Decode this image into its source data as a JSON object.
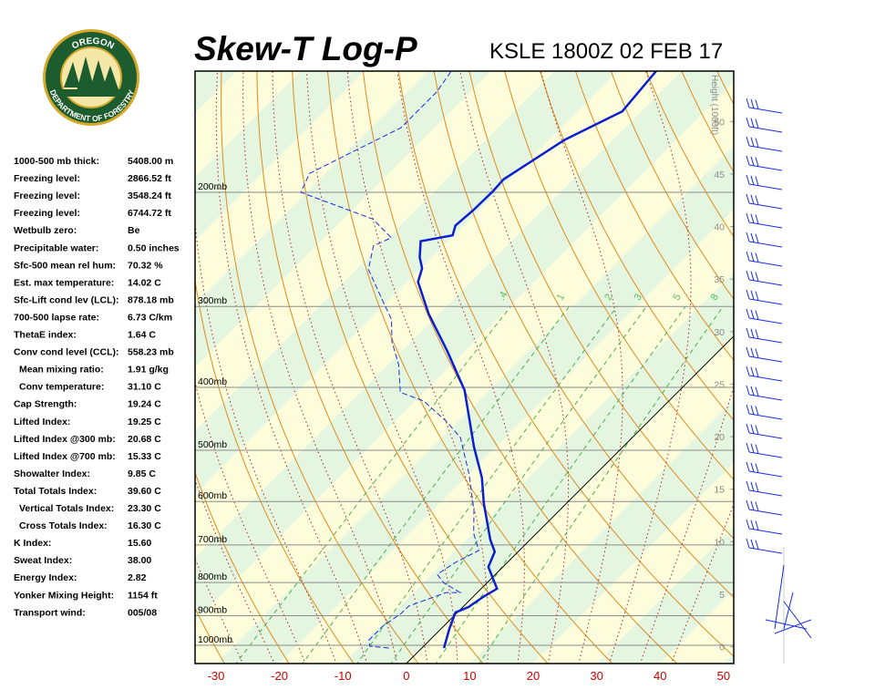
{
  "header": {
    "title": "Skew-T Log-P",
    "station": "KSLE 1800Z 02 FEB 17"
  },
  "logo": {
    "top": "OREGON",
    "bottom": "DEPARTMENT OF FORESTRY"
  },
  "indices": {
    "rows": [
      [
        "1000-500 mb thick:",
        "5408.00 m"
      ],
      [
        "Freezing level:",
        "2866.52 ft"
      ],
      [
        "Freezing level:",
        "3548.24 ft"
      ],
      [
        "Freezing level:",
        "6744.72 ft"
      ],
      [
        "Wetbulb zero:",
        "Be"
      ],
      [
        "Precipitable water:",
        "0.50 inches"
      ],
      [
        "Sfc-500 mean rel hum:",
        "70.32 %"
      ],
      [
        "Est. max temperature:",
        "14.02 C"
      ],
      [
        "Sfc-Lift cond lev (LCL):",
        "878.18 mb"
      ],
      [
        "700-500 lapse rate:",
        "6.73 C/km"
      ],
      [
        "ThetaE index:",
        "1.64 C"
      ],
      [
        "Conv cond level (CCL):",
        "558.23 mb"
      ],
      [
        "Mean mixing ratio:",
        "1.91 g/kg"
      ],
      [
        "Conv temperature:",
        "31.10 C"
      ],
      [
        "Cap Strength:",
        "19.24 C"
      ],
      [
        "Lifted Index:",
        "19.25 C"
      ],
      [
        "Lifted Index @300 mb:",
        "20.68 C"
      ],
      [
        "Lifted Index @700 mb:",
        "15.33 C"
      ],
      [
        "Showalter Index:",
        "9.85 C"
      ],
      [
        "Total Totals Index:",
        "39.60 C"
      ],
      [
        "Vertical Totals Index:",
        "23.30 C"
      ],
      [
        "Cross Totals Index:",
        "16.30 C"
      ],
      [
        "K Index:",
        "15.60"
      ],
      [
        "Sweat Index:",
        "38.00"
      ],
      [
        "Energy Index:",
        "2.82"
      ],
      [
        "Yonker Mixing Height:",
        "1154 ft"
      ],
      [
        "Transport wind:",
        "005/08"
      ]
    ]
  },
  "chart_data": {
    "type": "skewt",
    "xlim": [
      -33.3,
      51.6
    ],
    "xticks": [
      -30,
      -20,
      -10,
      0,
      10,
      20,
      30,
      40,
      50
    ],
    "ylim": [
      1067,
      130
    ],
    "log_y": true,
    "yticks": [
      {
        "value": 200,
        "label": "200mb"
      },
      {
        "value": 300,
        "label": "300mb"
      },
      {
        "value": 400,
        "label": "400mb"
      },
      {
        "value": 500,
        "label": "500mb"
      },
      {
        "value": 600,
        "label": "600mb"
      },
      {
        "value": 700,
        "label": "700mb"
      },
      {
        "value": 800,
        "label": "800mb"
      },
      {
        "value": 900,
        "label": "900mb"
      },
      {
        "value": 1000,
        "label": "1000mb"
      }
    ],
    "y2label": "Height (1000ft)",
    "y2lim": [
      -1.6,
      54.8
    ],
    "y2ticks": [
      0,
      5,
      10,
      15,
      20,
      25,
      30,
      35,
      40,
      45,
      50
    ],
    "mixing_ratios": [
      {
        "value": 0.4,
        "label": ".4"
      },
      1,
      2,
      3,
      5,
      8
    ],
    "series": [
      {
        "color": "#0a1fd0",
        "style": "solid",
        "pressure": [
          1010,
          943,
          890,
          873,
          842,
          818,
          757,
          717,
          687,
          603,
          551,
          494,
          404,
          351,
          308,
          275,
          262,
          252,
          238,
          233,
          225,
          213,
          199,
          191,
          166,
          150,
          130
        ],
        "values": [
          3.5,
          1.3,
          -0.3,
          0.9,
          1.6,
          2.5,
          -2.3,
          -3.7,
          -6.3,
          -13.1,
          -17.4,
          -23.5,
          -33.9,
          -42.9,
          -51.6,
          -58.3,
          -59.8,
          -61.9,
          -64.3,
          -60.2,
          -61.3,
          -60.9,
          -60.8,
          -61.0,
          -57.6,
          -53.0,
          -54.0
        ]
      },
      {
        "color": "#1a2ee0",
        "style": "dashed",
        "pressure": [
          1010,
          1003,
          981,
          934,
          893,
          870,
          829,
          829,
          802,
          777,
          745,
          714,
          672,
          619,
          544,
          478,
          451,
          420,
          407,
          369,
          340,
          314,
          294,
          263,
          242,
          235,
          220,
          200,
          187,
          175,
          159,
          140,
          130
        ],
        "values": [
          -5.2,
          -8.5,
          -9.6,
          -9.6,
          -8.7,
          -8.7,
          -4.9,
          -2.7,
          -6.7,
          -9.2,
          -8.2,
          -6.4,
          -9.9,
          -13.5,
          -20.0,
          -27.1,
          -31.9,
          -38.6,
          -43.7,
          -48.3,
          -53.0,
          -56.6,
          -60.9,
          -68.1,
          -71.0,
          -69.5,
          -75.3,
          -90.9,
          -92.5,
          -89.6,
          -85.3,
          -85.3,
          -86.3
        ]
      }
    ]
  }
}
